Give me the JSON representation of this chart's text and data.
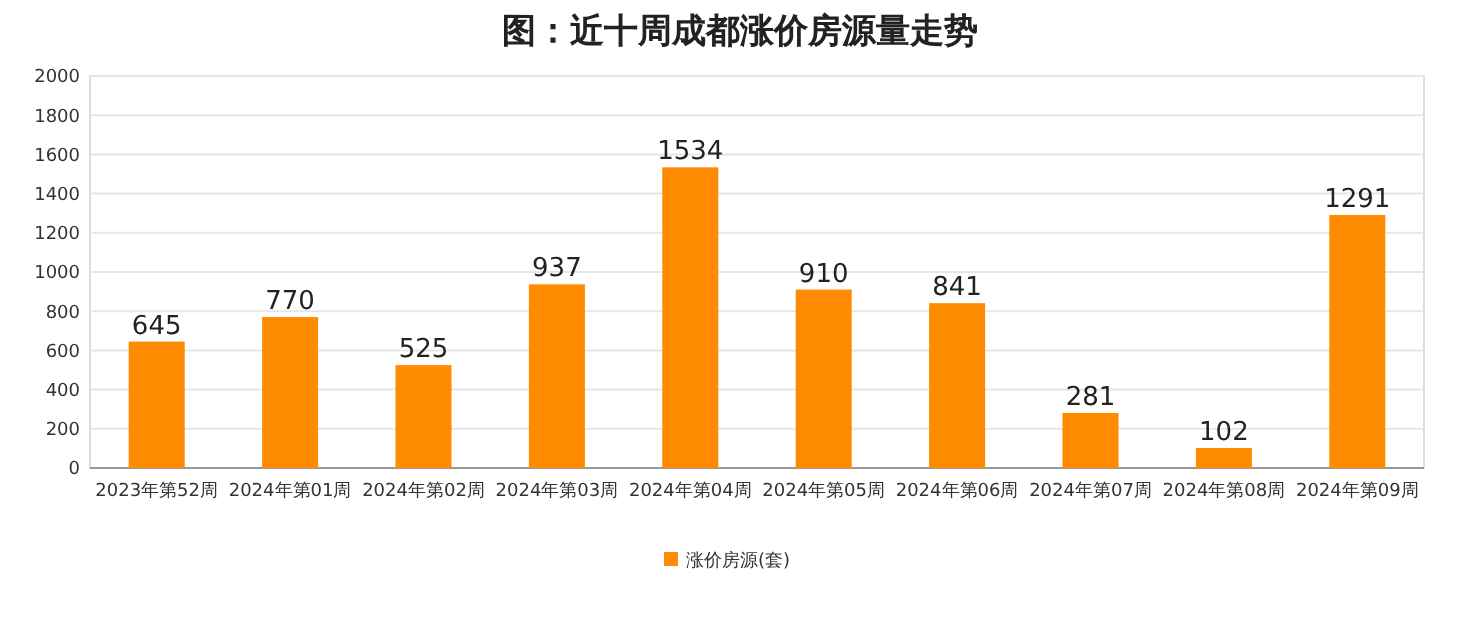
{
  "chart_data": {
    "type": "bar",
    "title": "图：近十周成都涨价房源量走势",
    "categories": [
      "2023年第52周",
      "2024年第01周",
      "2024年第02周",
      "2024年第03周",
      "2024年第04周",
      "2024年第05周",
      "2024年第06周",
      "2024年第07周",
      "2024年第08周",
      "2024年第09周"
    ],
    "series": [
      {
        "name": "涨价房源(套)",
        "color": "#ff8c00",
        "values": [
          645,
          770,
          525,
          937,
          1534,
          910,
          841,
          281,
          102,
          1291
        ]
      }
    ],
    "ylim": [
      0,
      2000
    ],
    "yticks": [
      0,
      200,
      400,
      600,
      800,
      1000,
      1200,
      1400,
      1600,
      1800,
      2000
    ],
    "grid": "y",
    "legend": "bottom",
    "data_labels": true
  }
}
